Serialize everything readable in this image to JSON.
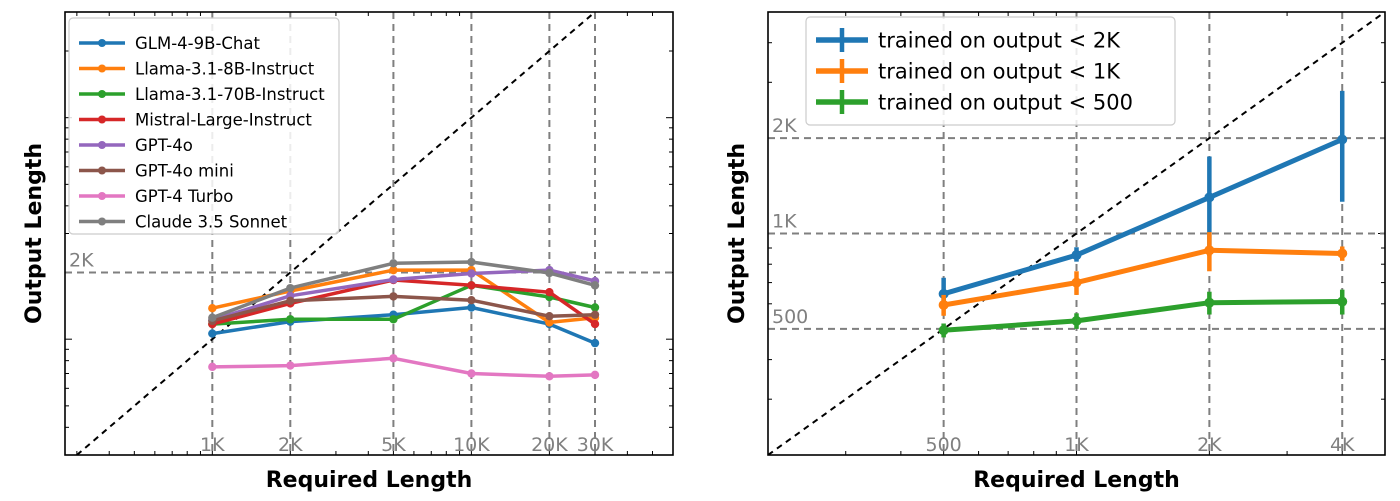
{
  "chart_data": [
    {
      "type": "line",
      "xlabel": "Required Length",
      "ylabel": "Output Length",
      "x_scale": "log",
      "y_scale": "log",
      "xlim": [
        270,
        60000
      ],
      "ylim": [
        300,
        30000
      ],
      "x": [
        1000,
        2000,
        5000,
        10000,
        20000,
        30000
      ],
      "x_tick_labels": [
        "1K",
        "2K",
        "5K",
        "10K",
        "20K",
        "30K"
      ],
      "y_ref": [
        {
          "value": 2000,
          "label": "2K"
        }
      ],
      "diagonal_reference": true,
      "legend_position": "top-left",
      "series": [
        {
          "name": "GLM-4-9B-Chat",
          "color": "#1f77b4",
          "values": [
            1060,
            1200,
            1290,
            1390,
            1170,
            960
          ]
        },
        {
          "name": "Llama-3.1-8B-Instruct",
          "color": "#ff7f0e",
          "values": [
            1380,
            1650,
            2050,
            2050,
            1190,
            1250
          ]
        },
        {
          "name": "Llama-3.1-70B-Instruct",
          "color": "#2ca02c",
          "values": [
            1170,
            1230,
            1230,
            1750,
            1550,
            1390
          ]
        },
        {
          "name": "Mistral-Large-Instruct",
          "color": "#d62728",
          "values": [
            1170,
            1450,
            1850,
            1750,
            1630,
            1170
          ]
        },
        {
          "name": "GPT-4o",
          "color": "#9467bd",
          "values": [
            1220,
            1570,
            1860,
            1980,
            2050,
            1830
          ]
        },
        {
          "name": "GPT-4o mini",
          "color": "#8c564b",
          "values": [
            1210,
            1490,
            1560,
            1500,
            1270,
            1290
          ]
        },
        {
          "name": "GPT-4 Turbo",
          "color": "#e377c2",
          "values": [
            750,
            760,
            820,
            700,
            680,
            690
          ]
        },
        {
          "name": "Claude 3.5 Sonnet",
          "color": "#7f7f7f",
          "values": [
            1250,
            1700,
            2200,
            2230,
            1990,
            1750
          ]
        }
      ]
    },
    {
      "type": "line",
      "xlabel": "Required Length",
      "ylabel": "Output Length",
      "x_scale": "log",
      "y_scale": "log",
      "xlim": [
        200,
        5000
      ],
      "ylim": [
        200,
        5000
      ],
      "x": [
        500,
        1000,
        2000,
        4000
      ],
      "x_tick_labels": [
        "500",
        "1K",
        "2K",
        "4K"
      ],
      "y_ref": [
        {
          "value": 500,
          "label": "500"
        },
        {
          "value": 1000,
          "label": "1K"
        },
        {
          "value": 2000,
          "label": "2K"
        }
      ],
      "diagonal_reference": true,
      "error_bars": true,
      "legend_position": "top-left",
      "series": [
        {
          "name": "trained on output < 2K",
          "color": "#1f77b4",
          "values": [
            645,
            855,
            1300,
            1980
          ],
          "err_low": [
            55,
            40,
            450,
            720
          ],
          "err_high": [
            80,
            50,
            450,
            840
          ]
        },
        {
          "name": "trained on output < 1K",
          "color": "#ff7f0e",
          "values": [
            595,
            700,
            885,
            865
          ],
          "err_low": [
            45,
            60,
            125,
            45
          ],
          "err_high": [
            45,
            60,
            125,
            45
          ]
        },
        {
          "name": "trained on output < 500",
          "color": "#2ca02c",
          "values": [
            495,
            530,
            605,
            610
          ],
          "err_low": [
            25,
            30,
            50,
            55
          ],
          "err_high": [
            25,
            30,
            50,
            55
          ]
        }
      ]
    }
  ]
}
